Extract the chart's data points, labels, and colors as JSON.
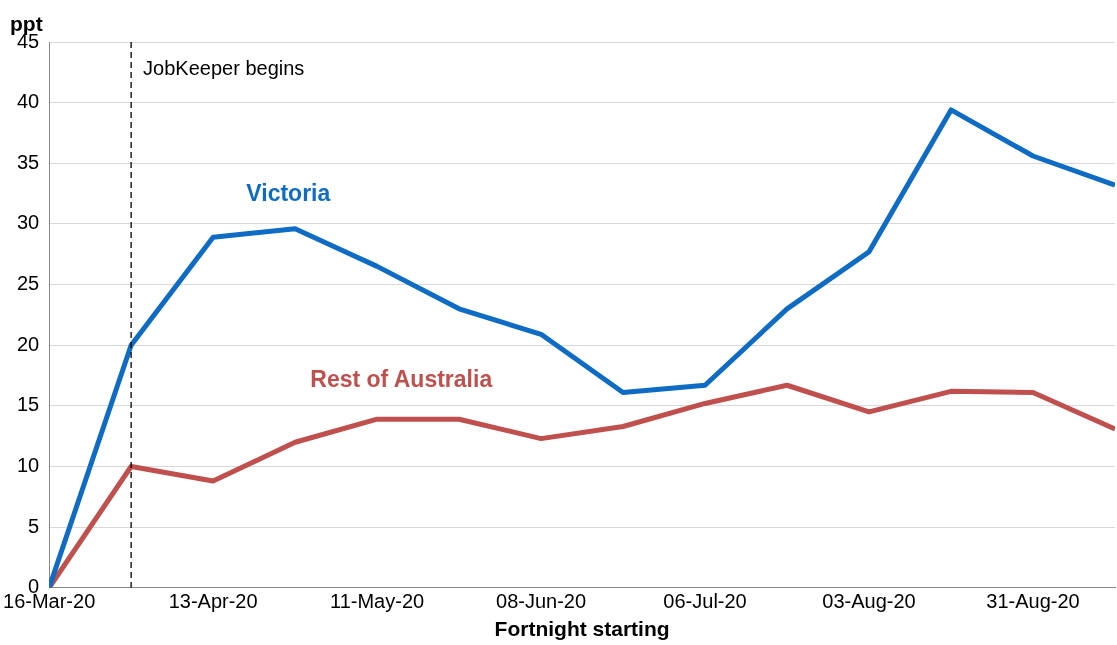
{
  "chart_data": {
    "type": "line",
    "ylabel": "ppt",
    "xlabel": "Fortnight starting",
    "x": [
      "2020-03-16",
      "2020-03-30",
      "2020-04-13",
      "2020-04-27",
      "2020-05-11",
      "2020-05-25",
      "2020-06-08",
      "2020-06-22",
      "2020-07-06",
      "2020-07-20",
      "2020-08-03",
      "2020-08-17",
      "2020-08-31",
      "2020-09-14"
    ],
    "series": [
      {
        "name": "Victoria",
        "color": "#0f6cc4",
        "values": [
          0,
          20,
          28.9,
          29.6,
          26.5,
          23,
          20.9,
          16.1,
          16.7,
          23,
          27.7,
          39.4,
          35.6,
          33.2
        ]
      },
      {
        "name": "Rest of Australia",
        "color": "#c0504d",
        "values": [
          0,
          10,
          8.8,
          12,
          13.9,
          13.9,
          12.3,
          13.3,
          15.2,
          16.7,
          14.5,
          16.2,
          16.1,
          13.1
        ]
      }
    ],
    "xlim": [
      "2020-03-16",
      "2020-09-14"
    ],
    "xticks": [
      {
        "value": "2020-03-16",
        "label": "16-Mar-20"
      },
      {
        "value": "2020-04-13",
        "label": "13-Apr-20"
      },
      {
        "value": "2020-05-11",
        "label": "11-May-20"
      },
      {
        "value": "2020-06-08",
        "label": "08-Jun-20"
      },
      {
        "value": "2020-07-06",
        "label": "06-Jul-20"
      },
      {
        "value": "2020-08-03",
        "label": "03-Aug-20"
      },
      {
        "value": "2020-08-31",
        "label": "31-Aug-20"
      }
    ],
    "ylim": [
      0,
      45
    ],
    "yticks": [
      0,
      5,
      10,
      15,
      20,
      25,
      30,
      35,
      40,
      45
    ],
    "ref_lines": [
      {
        "axis": "x",
        "value": "2020-03-30",
        "label": "JobKeeper begins",
        "color": "#000000",
        "line_style": "dashed"
      }
    ],
    "grid": "y",
    "legend": false,
    "marker": "none",
    "line_style": "solid"
  }
}
